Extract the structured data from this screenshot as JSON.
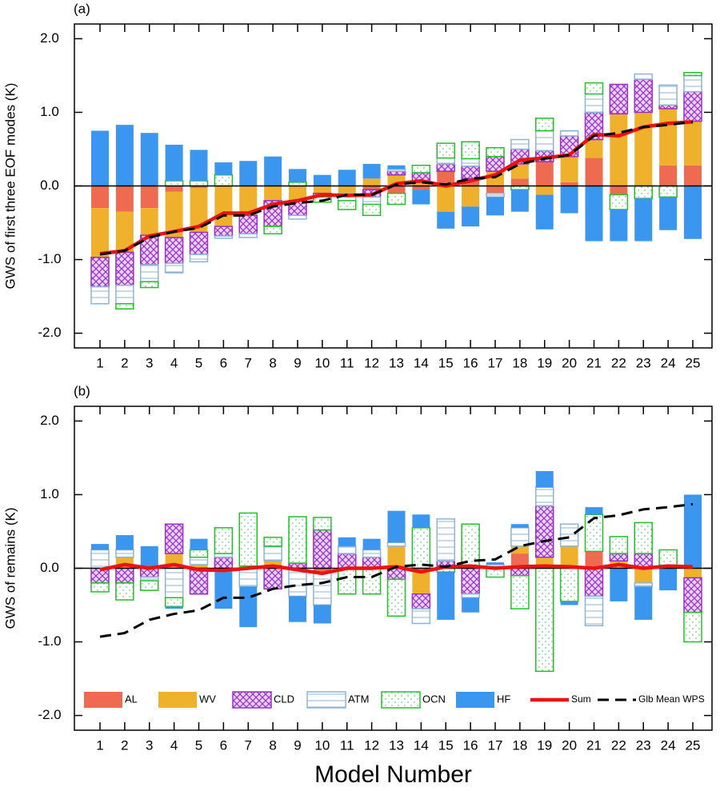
{
  "chart_data": [
    {
      "type": "bar",
      "panel_label": "(a)",
      "ylabel": "GWS of first three EOF modes (K)",
      "categories": [
        "1",
        "2",
        "3",
        "4",
        "5",
        "6",
        "7",
        "8",
        "9",
        "10",
        "11",
        "12",
        "13",
        "14",
        "15",
        "16",
        "17",
        "18",
        "19",
        "20",
        "21",
        "22",
        "23",
        "24",
        "25"
      ],
      "ylim": [
        -2.2,
        2.2
      ],
      "yticks": [
        {
          "value": -2,
          "label": "-2.0"
        },
        {
          "value": -1,
          "label": "-1.0"
        },
        {
          "value": 0,
          "label": "0.0"
        },
        {
          "value": 1,
          "label": "1.0"
        },
        {
          "value": 2,
          "label": "2.0"
        }
      ],
      "stacked": true,
      "series": [
        {
          "name": "AL",
          "color": "#ee6a50",
          "fill_style": "solid",
          "values": [
            -0.3,
            -0.35,
            -0.3,
            -0.08,
            -0.03,
            0,
            0,
            0,
            0,
            0,
            0,
            -0.05,
            -0.1,
            -0.05,
            0.2,
            0.1,
            -0.1,
            0.1,
            0.33,
            0.05,
            0.38,
            -0.12,
            0,
            0.28,
            0.28
          ]
        },
        {
          "name": "WV",
          "color": "#efb12b",
          "fill_style": "solid",
          "values": [
            -0.67,
            -0.55,
            -0.37,
            -0.62,
            -0.6,
            -0.55,
            -0.4,
            -0.2,
            -0.2,
            -0.1,
            -0.1,
            0.1,
            0.15,
            0.05,
            -0.35,
            -0.28,
            0.2,
            0.2,
            -0.12,
            0.35,
            0.25,
            0.98,
            1.0,
            0.77,
            0.6
          ]
        },
        {
          "name": "CLD",
          "color": "#9b30c8",
          "fill_style": "crosshatch",
          "values": [
            -0.4,
            -0.45,
            -0.4,
            -0.35,
            -0.3,
            -0.13,
            -0.25,
            -0.35,
            -0.2,
            -0.05,
            0,
            -0.1,
            0.05,
            0.13,
            0.1,
            0.17,
            0.2,
            0.2,
            0.15,
            0.28,
            0.37,
            0.4,
            0.45,
            0.05,
            0.4
          ]
        },
        {
          "name": "ATM",
          "color": "#8db4d6",
          "fill_style": "hlines",
          "values": [
            -0.23,
            -0.25,
            -0.23,
            -0.13,
            -0.1,
            -0.03,
            -0.05,
            0,
            -0.05,
            0,
            -0.1,
            -0.1,
            0.03,
            0,
            0.08,
            0.1,
            -0.05,
            0.13,
            0.27,
            0.07,
            0.25,
            0,
            0.07,
            0.27,
            0.22
          ]
        },
        {
          "name": "OCN",
          "color": "#22c02a",
          "fill_style": "dots",
          "values": [
            0,
            -0.07,
            -0.08,
            0.07,
            0.07,
            0.15,
            0,
            -0.1,
            0.05,
            -0.07,
            -0.12,
            -0.15,
            -0.15,
            0.1,
            0.2,
            0.23,
            0.12,
            -0.05,
            0.17,
            0,
            0.15,
            -0.2,
            -0.17,
            -0.15,
            0.04
          ]
        },
        {
          "name": "HF",
          "color": "#3a96ee",
          "fill_style": "solid",
          "values": [
            0.75,
            0.83,
            0.72,
            0.49,
            0.42,
            0.17,
            0.34,
            0.4,
            0.18,
            0.15,
            0.22,
            0.2,
            0.05,
            -0.2,
            -0.23,
            -0.27,
            -0.25,
            -0.3,
            -0.47,
            -0.37,
            -0.75,
            -0.43,
            -0.58,
            -0.45,
            -0.72
          ]
        },
        {
          "name": "Sum",
          "type": "line",
          "color": "#ee1111",
          "linestyle": "solid",
          "values": [
            -0.92,
            -0.88,
            -0.68,
            -0.62,
            -0.55,
            -0.37,
            -0.37,
            -0.25,
            -0.2,
            -0.12,
            -0.13,
            -0.12,
            0.03,
            0.07,
            0,
            0.07,
            0.15,
            0.35,
            0.38,
            0.42,
            0.7,
            0.68,
            0.8,
            0.85,
            0.87
          ]
        },
        {
          "name": "Glb Mean WPS",
          "type": "line",
          "color": "#000000",
          "linestyle": "dashed",
          "values": [
            -0.93,
            -0.88,
            -0.7,
            -0.62,
            -0.57,
            -0.4,
            -0.4,
            -0.28,
            -0.23,
            -0.2,
            -0.12,
            -0.12,
            0.02,
            0.05,
            0.02,
            0.1,
            0.12,
            0.3,
            0.37,
            0.42,
            0.68,
            0.72,
            0.8,
            0.83,
            0.87
          ]
        }
      ]
    },
    {
      "type": "bar",
      "panel_label": "(b)",
      "ylabel": "GWS of remains (K)",
      "xlabel": "Model Number",
      "legend": "bottom",
      "categories": [
        "1",
        "2",
        "3",
        "4",
        "5",
        "6",
        "7",
        "8",
        "9",
        "10",
        "11",
        "12",
        "13",
        "14",
        "15",
        "16",
        "17",
        "18",
        "19",
        "20",
        "21",
        "22",
        "23",
        "24",
        "25"
      ],
      "ylim": [
        -2.2,
        2.2
      ],
      "yticks": [
        {
          "value": -2,
          "label": "-2.0"
        },
        {
          "value": -1,
          "label": "-1.0"
        },
        {
          "value": 0,
          "label": "0.0"
        },
        {
          "value": 1,
          "label": "1.0"
        },
        {
          "value": 2,
          "label": "2.0"
        }
      ],
      "stacked": true,
      "series": [
        {
          "name": "AL",
          "color": "#ee6a50",
          "fill_style": "solid",
          "values": [
            0,
            0,
            0,
            0,
            0,
            -0.05,
            0,
            0.05,
            0,
            -0.05,
            0,
            0,
            0,
            -0.05,
            0,
            0,
            0,
            0.2,
            0,
            0,
            0.23,
            0,
            0,
            0,
            0
          ]
        },
        {
          "name": "WV",
          "color": "#efb12b",
          "fill_style": "solid",
          "values": [
            0,
            0.15,
            0,
            0.2,
            0.05,
            0,
            0.03,
            0.05,
            0,
            0,
            0,
            0,
            0.3,
            -0.3,
            0,
            0,
            0,
            0.1,
            0.15,
            0.3,
            0,
            0.1,
            -0.2,
            0,
            -0.13
          ]
        },
        {
          "name": "CLD",
          "color": "#9b30c8",
          "fill_style": "crosshatch",
          "values": [
            -0.2,
            -0.2,
            -0.12,
            0.4,
            -0.35,
            0.15,
            0,
            -0.28,
            0.07,
            0.52,
            0.2,
            0.15,
            -0.15,
            -0.2,
            0.1,
            -0.35,
            0,
            -0.1,
            0.7,
            0,
            -0.38,
            0.1,
            0.2,
            0,
            -0.47
          ]
        },
        {
          "name": "ATM",
          "color": "#8db4d6",
          "fill_style": "hlines",
          "values": [
            0.25,
            0.1,
            -0.05,
            -0.4,
            0.1,
            0.05,
            -0.25,
            0.2,
            -0.38,
            -0.45,
            0.1,
            0.1,
            0.05,
            -0.2,
            0.57,
            -0.05,
            0.05,
            0.25,
            0.25,
            0.3,
            -0.4,
            0,
            -0.05,
            0,
            0
          ]
        },
        {
          "name": "OCN",
          "color": "#22c02a",
          "fill_style": "dots",
          "values": [
            -0.12,
            -0.23,
            -0.13,
            -0.12,
            0.1,
            0.35,
            0.72,
            0.12,
            0.63,
            0.17,
            -0.35,
            -0.35,
            -0.5,
            0.55,
            -0.05,
            0.6,
            -0.12,
            -0.45,
            -1.4,
            -0.45,
            0.5,
            0.23,
            0.42,
            0.25,
            -0.4
          ]
        },
        {
          "name": "HF",
          "color": "#3a96ee",
          "fill_style": "solid",
          "values": [
            0.08,
            0.2,
            0.3,
            -0.03,
            0.15,
            -0.5,
            -0.55,
            0,
            -0.35,
            -0.25,
            0.12,
            0.15,
            0.43,
            0.18,
            -0.65,
            -0.2,
            0.03,
            0.05,
            0.22,
            -0.05,
            0.1,
            -0.45,
            -0.45,
            -0.3,
            1.0
          ]
        },
        {
          "name": "Sum",
          "type": "line",
          "color": "#ee1111",
          "linestyle": "solid",
          "values": [
            -0.02,
            0.05,
            0,
            0.05,
            -0.02,
            -0.03,
            0,
            0.03,
            -0.02,
            -0.07,
            0,
            0,
            0.02,
            -0.05,
            0.02,
            0.03,
            0,
            0.02,
            0.03,
            0.02,
            0,
            0.05,
            0,
            0.03,
            0.02
          ]
        },
        {
          "name": "Glb Mean WPS",
          "type": "line",
          "color": "#000000",
          "linestyle": "dashed",
          "values": [
            -0.93,
            -0.88,
            -0.7,
            -0.62,
            -0.57,
            -0.4,
            -0.4,
            -0.28,
            -0.23,
            -0.2,
            -0.12,
            -0.12,
            0.02,
            0.05,
            0.02,
            0.1,
            0.12,
            0.3,
            0.37,
            0.42,
            0.68,
            0.72,
            0.8,
            0.83,
            0.87
          ]
        }
      ]
    }
  ]
}
